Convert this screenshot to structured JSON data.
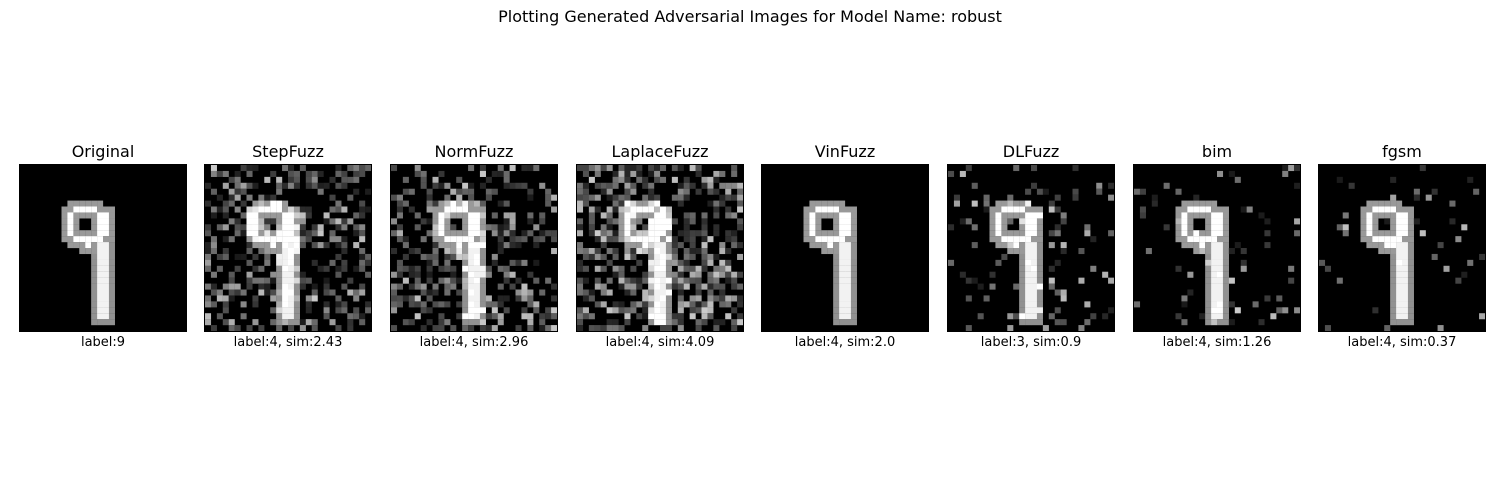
{
  "figure": {
    "title": "Plotting Generated Adversarial Images for Model Name: robust"
  },
  "panels": [
    {
      "title": "Original",
      "label": "label:9",
      "noise": 0
    },
    {
      "title": "StepFuzz",
      "label": "label:4, sim:2.43",
      "noise": 0.45
    },
    {
      "title": "NormFuzz",
      "label": "label:4, sim:2.96",
      "noise": 0.4
    },
    {
      "title": "LaplaceFuzz",
      "label": "label:4, sim:4.09",
      "noise": 0.5
    },
    {
      "title": "VinFuzz",
      "label": "label:4, sim:2.0",
      "noise": 0
    },
    {
      "title": "DLFuzz",
      "label": "label:3, sim:0.9",
      "noise": 0.12
    },
    {
      "title": "bim",
      "label": "label:4, sim:1.26",
      "noise": 0.08
    },
    {
      "title": "fgsm",
      "label": "label:4, sim:0.37",
      "noise": 0.05
    }
  ],
  "colors": {
    "background": "#ffffff",
    "image_background": "#000000",
    "digit": "#ffffff"
  }
}
